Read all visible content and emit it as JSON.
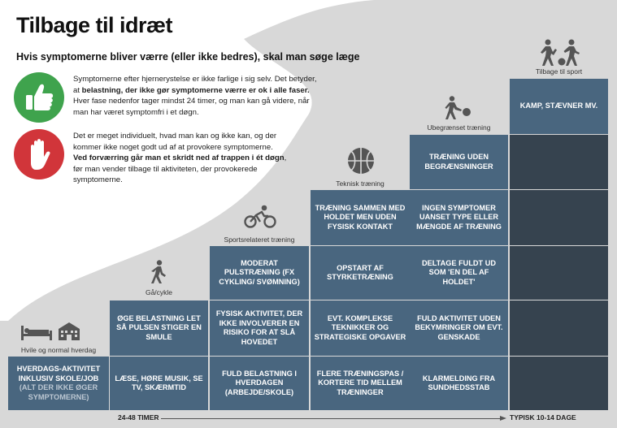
{
  "title": "Tilbage til idræt",
  "subtitle": "Hvis symptomerne bliver værre (eller ikke bedres), skal man søge læge",
  "info": {
    "p1_a": "Symptomerne efter hjernerystelse er ikke farlige i sig selv. Det betyder, at ",
    "p1_b": "belastning, der ikke gør symptomerne værre er ok i alle faser.",
    "p1_c": " Hver fase nedenfor tager mindst 24 timer, og man kan gå videre, når man har været symptomfri i et døgn.",
    "p2_a": "Det er meget individuelt, hvad man kan og ikke kan, og der kommer ikke noget godt ud af at provokere symptomerne. ",
    "p2_b": "Ved forværring går man et skridt ned af trappen i ét døgn",
    "p2_c": ", før man vender tilbage til aktiviteten, der provokerede symptomerne.",
    "good_icon": "thumbs-up-icon",
    "stop_icon": "stop-hand-icon"
  },
  "stages": [
    {
      "label": "Hvile og normal hverdag",
      "icon": "bed-house-icon"
    },
    {
      "label": "Gå/cykle",
      "icon": "walking-icon"
    },
    {
      "label": "Sportsrelateret træning",
      "icon": "cycling-icon"
    },
    {
      "label": "Teknisk træning",
      "icon": "ball-icon"
    },
    {
      "label": "Ubegrænset træning",
      "icon": "ball-player-icon"
    },
    {
      "label": "Tilbage til sport",
      "icon": "players-icon"
    }
  ],
  "cells": {
    "c1_1": "Hverdags-aktivitet inklusiv skole/job",
    "c1_1_sub": "(alt der ikke øger symptomerne)",
    "c2_1": "Læse, høre musik, se TV, skærmtid",
    "c2_2": "Øge belastning let så pulsen stiger en smule",
    "c3_1": "Fuld belastning i hverdagen (arbejde/skole)",
    "c3_2": "Fysisk aktivitet, der ikke involverer en risiko for at slå hovedet",
    "c3_3": "Moderat pulstræning (fx cykling/ svømning)",
    "c4_1": "Flere træningspas / kortere tid mellem træninger",
    "c4_2": "Evt. komplekse teknikker og strategiske opgaver",
    "c4_3": "Opstart af styrketræning",
    "c4_4": "Træning sammen med holdet men uden fysisk kontakt",
    "c5_1": "Klarmelding fra sundhedsstab",
    "c5_2": "Fuld aktivitet uden bekymringer om evt. genskade",
    "c5_3": "Deltage fuldt ud som 'en del af holdet'",
    "c5_4": "Ingen symptomer uanset type eller mængde af træning",
    "c5_5": "Træning uden begrænsninger",
    "c6_6": "Kamp, stævner mv."
  },
  "axis": {
    "left": "24-48 TIMER",
    "right": "TYPISK 10-14 DAGE"
  },
  "colors": {
    "cell": "#49667f",
    "cell_dark": "#36434f",
    "background_curve": "#d9d9d9",
    "green": "#3fa34d",
    "red": "#d1353a"
  }
}
